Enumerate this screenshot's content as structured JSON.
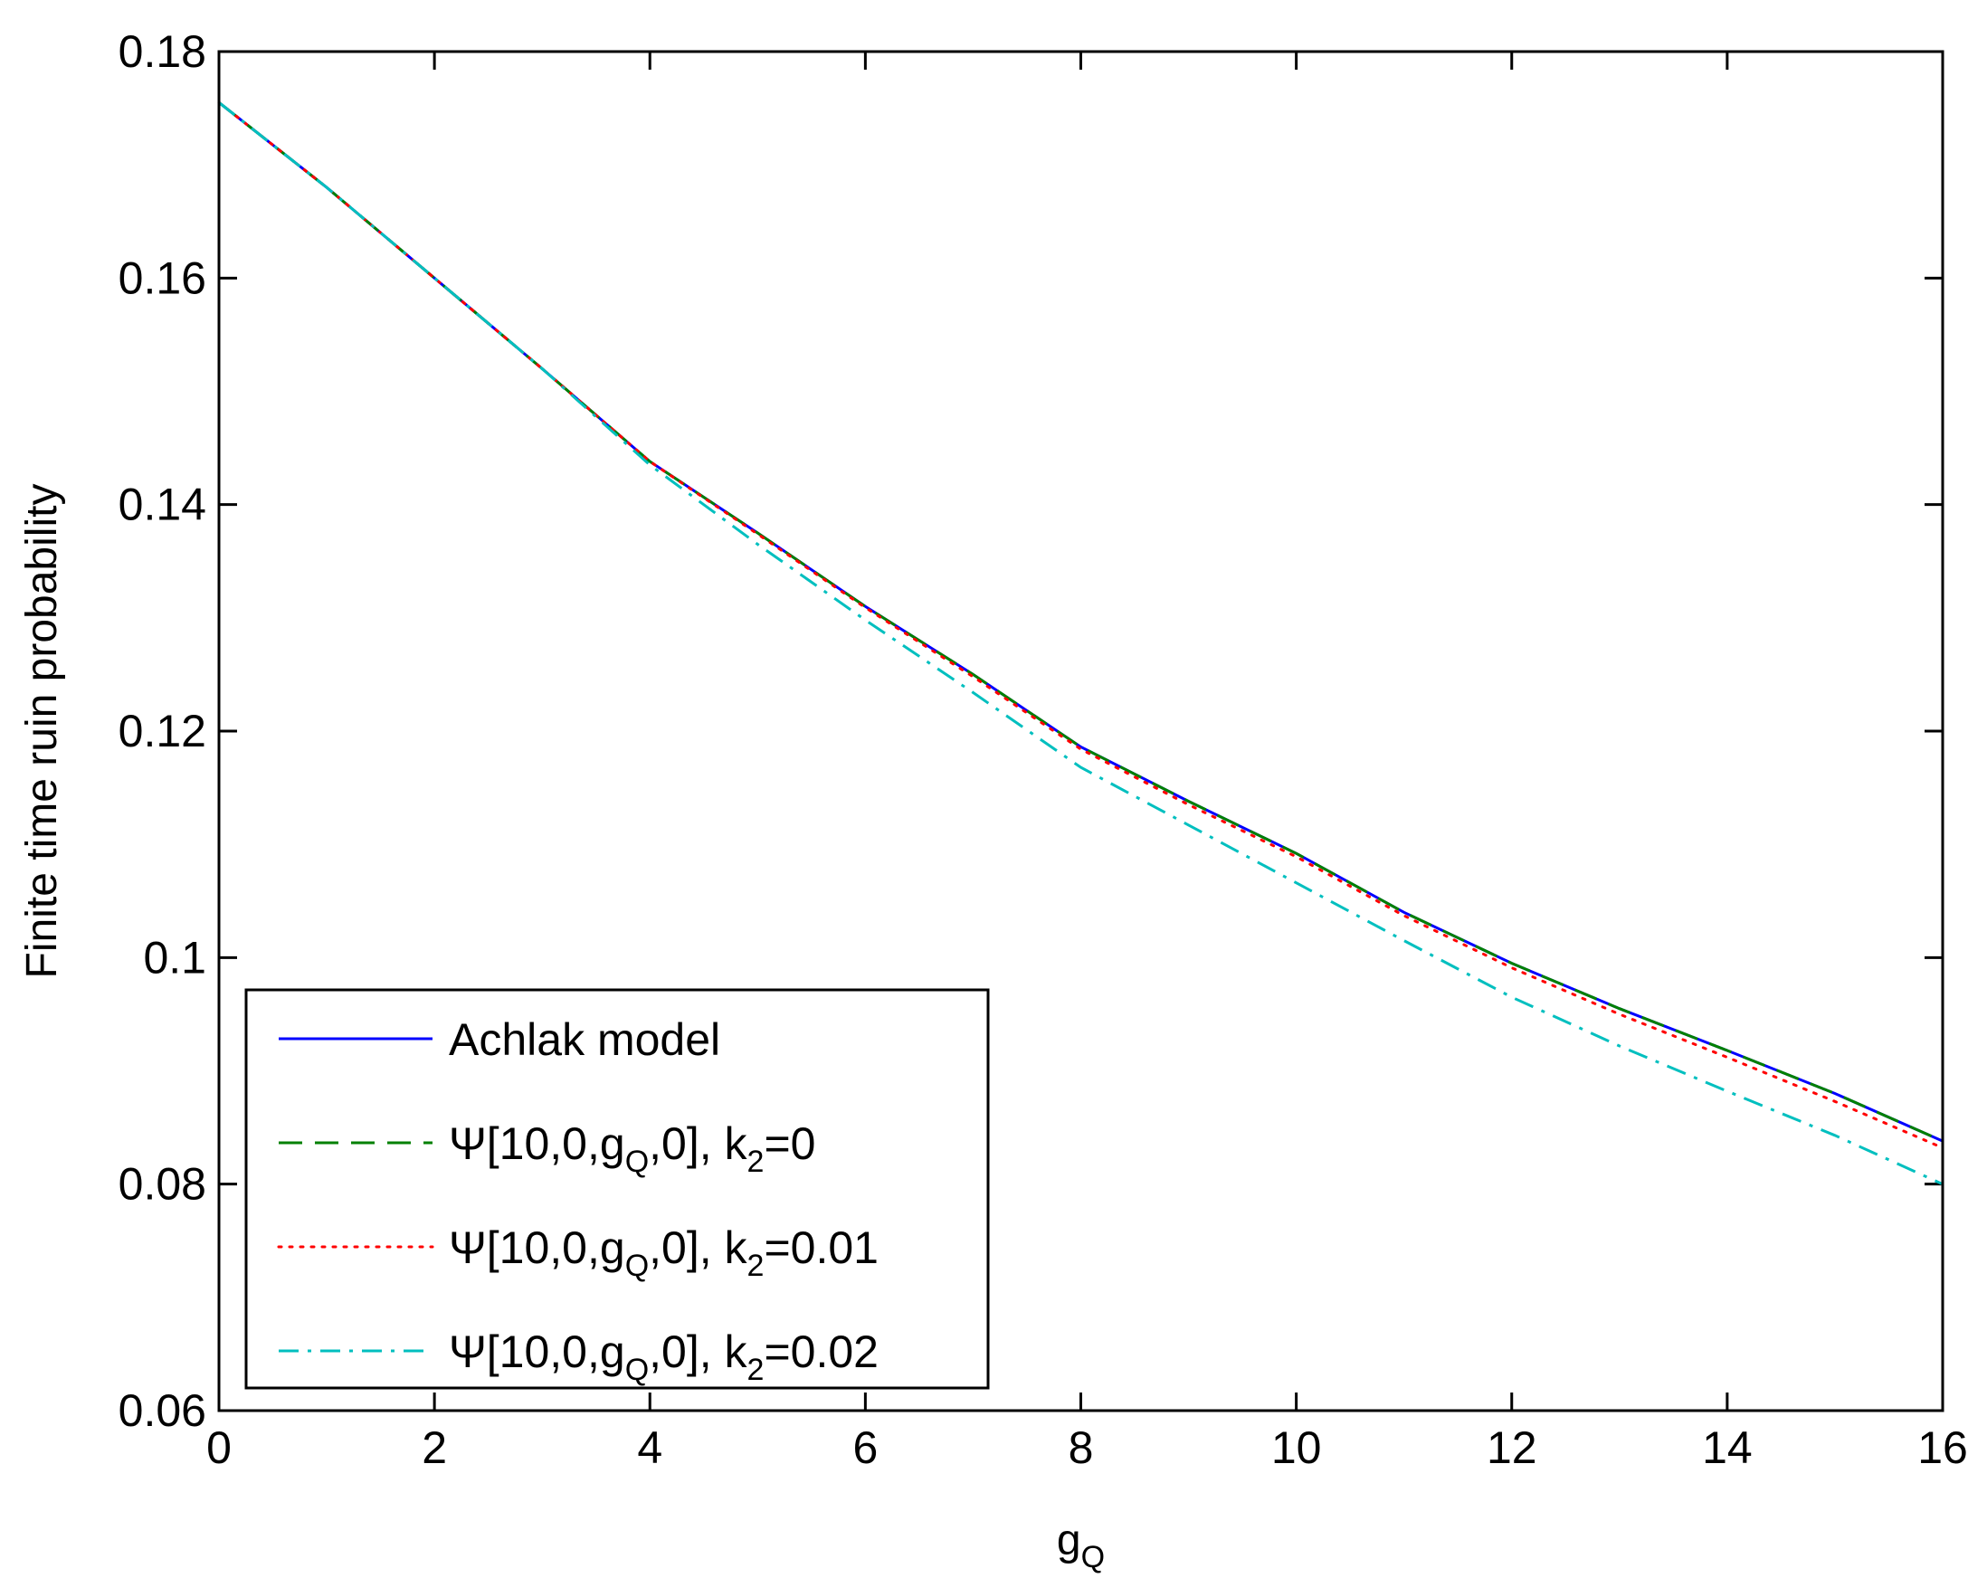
{
  "chart_data": {
    "type": "line",
    "title": "",
    "xlabel": {
      "main": "g",
      "sub": "Q"
    },
    "ylabel": "Finite time ruin probability",
    "xlim": [
      0,
      16
    ],
    "ylim": [
      0.06,
      0.18
    ],
    "xticks": [
      0,
      2,
      4,
      6,
      8,
      10,
      12,
      14,
      16
    ],
    "xtick_labels": [
      "0",
      "2",
      "4",
      "6",
      "8",
      "10",
      "12",
      "14",
      "16"
    ],
    "yticks": [
      0.06,
      0.08,
      0.1,
      0.12,
      0.14,
      0.16,
      0.18
    ],
    "ytick_labels": [
      "0.06",
      "0.08",
      "0.1",
      "0.12",
      "0.14",
      "0.16",
      "0.18"
    ],
    "grid": false,
    "legend_position": "bottom-left",
    "series": [
      {
        "name": "Achlak model",
        "legend": {
          "prefix": "Achlak model",
          "sub1": "",
          "mid": "",
          "sub2": "",
          "suffix": ""
        },
        "color": "#0000ff",
        "dash": "solid",
        "x": [
          0,
          1,
          2,
          3,
          4,
          5,
          6,
          7,
          8,
          9,
          10,
          11,
          12,
          13,
          14,
          15,
          16
        ],
        "y": [
          0.1755,
          0.168,
          0.16,
          0.152,
          0.1438,
          0.1375,
          0.131,
          0.125,
          0.1186,
          0.1138,
          0.1092,
          0.104,
          0.0995,
          0.0955,
          0.0918,
          0.088,
          0.0838
        ]
      },
      {
        "name": "Ψ[10,0,gQ,0], k2=0",
        "legend": {
          "prefix": "Ψ[10,0,g",
          "sub1": "Q",
          "mid": ",0], k",
          "sub2": "2",
          "suffix": "=0"
        },
        "color": "#008000",
        "dash": "dashed",
        "x": [
          0,
          1,
          2,
          3,
          4,
          5,
          6,
          7,
          8,
          9,
          10,
          11,
          12,
          13,
          14,
          15,
          16
        ],
        "y": [
          0.1755,
          0.168,
          0.16,
          0.152,
          0.1438,
          0.1375,
          0.131,
          0.125,
          0.1186,
          0.1138,
          0.1092,
          0.104,
          0.0995,
          0.0955,
          0.0918,
          0.088,
          0.0838
        ]
      },
      {
        "name": "Ψ[10,0,gQ,0], k2=0.01",
        "legend": {
          "prefix": "Ψ[10,0,g",
          "sub1": "Q",
          "mid": ",0], k",
          "sub2": "2",
          "suffix": "=0.01"
        },
        "color": "#ff0000",
        "dash": "dotted",
        "x": [
          0,
          1,
          2,
          3,
          4,
          5,
          6,
          7,
          8,
          9,
          10,
          11,
          12,
          13,
          14,
          15,
          16
        ],
        "y": [
          0.1755,
          0.168,
          0.16,
          0.152,
          0.1438,
          0.1374,
          0.1309,
          0.1248,
          0.1184,
          0.1135,
          0.1089,
          0.1037,
          0.0991,
          0.095,
          0.0912,
          0.0873,
          0.0832
        ]
      },
      {
        "name": "Ψ[10,0,gQ,0], k2=0.02",
        "legend": {
          "prefix": "Ψ[10,0,g",
          "sub1": "Q",
          "mid": ",0], k",
          "sub2": "2",
          "suffix": "=0.02"
        },
        "color": "#00bfbf",
        "dash": "dashdot",
        "x": [
          0,
          1,
          2,
          3,
          4,
          5,
          6,
          7,
          8,
          9,
          10,
          11,
          12,
          13,
          14,
          15,
          16
        ],
        "y": [
          0.1755,
          0.168,
          0.16,
          0.152,
          0.1435,
          0.1365,
          0.1298,
          0.1234,
          0.1168,
          0.1117,
          0.1066,
          0.1015,
          0.0965,
          0.0922,
          0.0882,
          0.0843,
          0.08
        ]
      }
    ]
  }
}
